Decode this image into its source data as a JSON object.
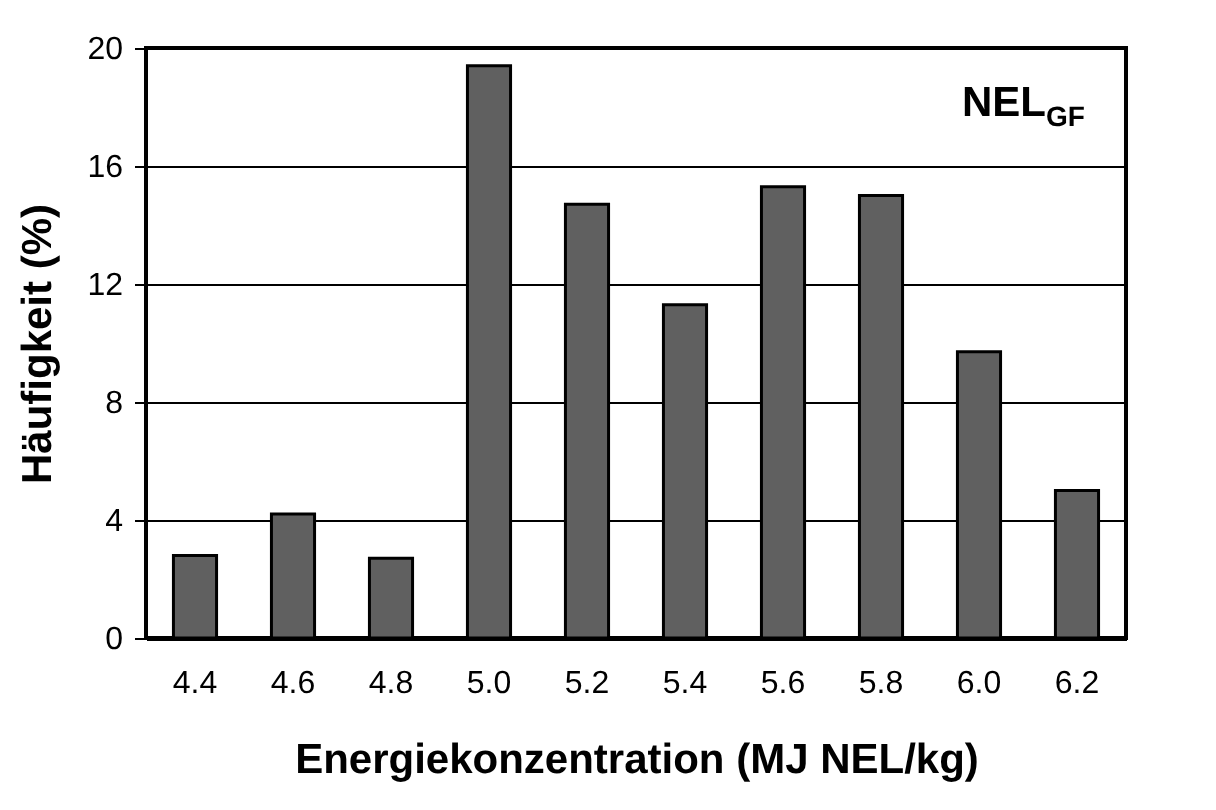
{
  "chart_data": {
    "type": "bar",
    "xlabel": "Energiekonzentration (MJ NEL/kg)",
    "ylabel": "Häufigkeit (%)",
    "annotations": [
      "NEL$_{GF}$"
    ],
    "categories": [
      "4.4",
      "4.6",
      "4.8",
      "5.0",
      "5.2",
      "5.4",
      "5.6",
      "5.8",
      "6.0",
      "6.2"
    ],
    "values": [
      2.8,
      4.2,
      2.7,
      19.4,
      14.7,
      11.3,
      15.3,
      15.0,
      9.7,
      5.0
    ],
    "color": "#606060",
    "ylim": [
      0,
      20
    ],
    "yticks": [
      0,
      4,
      8,
      12,
      16,
      20
    ],
    "grid": "y"
  }
}
